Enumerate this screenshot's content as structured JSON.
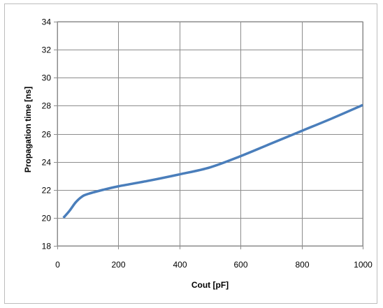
{
  "chart_data": {
    "type": "line",
    "title": "",
    "xlabel": "Cout [pF]",
    "ylabel": "Propagation time [ns]",
    "xlim": [
      0,
      1000
    ],
    "ylim": [
      18,
      34
    ],
    "x_ticks": [
      0,
      200,
      400,
      600,
      800,
      1000
    ],
    "y_ticks": [
      18,
      20,
      22,
      24,
      26,
      28,
      30,
      32,
      34
    ],
    "grid": true,
    "legend": "none",
    "series": [
      {
        "color": "#4a7ebb",
        "x": [
          20,
          40,
          60,
          80,
          100,
          150,
          200,
          300,
          400,
          500,
          600,
          700,
          800,
          900,
          1000
        ],
        "y": [
          20.0,
          20.5,
          21.1,
          21.5,
          21.7,
          22.0,
          22.25,
          22.65,
          23.1,
          23.6,
          24.4,
          25.3,
          26.2,
          27.1,
          28.05
        ]
      }
    ]
  }
}
